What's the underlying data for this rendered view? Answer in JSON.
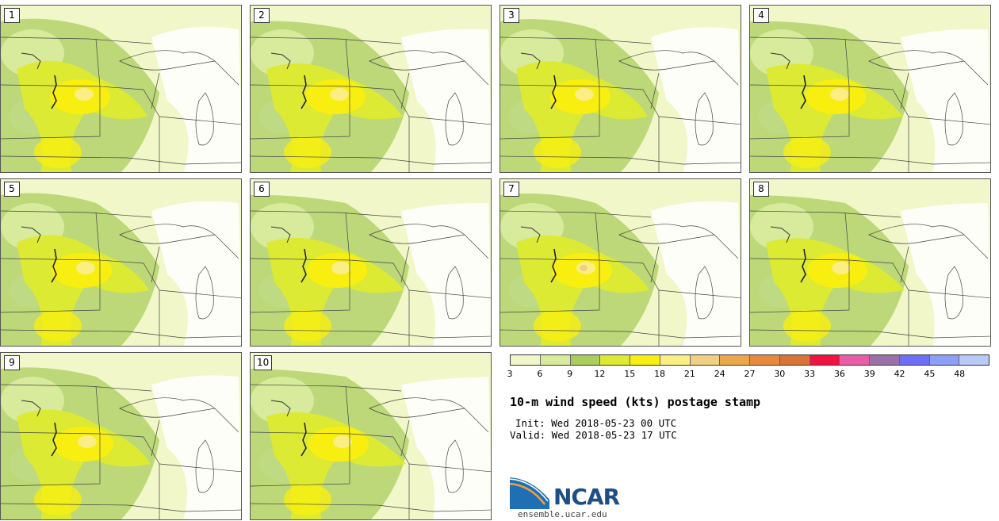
{
  "panels": [
    {
      "label": "1"
    },
    {
      "label": "2"
    },
    {
      "label": "3"
    },
    {
      "label": "4"
    },
    {
      "label": "5"
    },
    {
      "label": "6"
    },
    {
      "label": "7"
    },
    {
      "label": "8"
    },
    {
      "label": "9"
    },
    {
      "label": "10"
    }
  ],
  "colorbar": {
    "colors": [
      "#f1f7c8",
      "#d8ea9c",
      "#aacd5e",
      "#dcea33",
      "#f8ef10",
      "#fbee84",
      "#f2d083",
      "#eca74b",
      "#e88a3e",
      "#d97336",
      "#f01341",
      "#e85da6",
      "#9b72a8",
      "#6e6ef8",
      "#8e9ff8",
      "#b9caf9"
    ],
    "ticks": [
      "3",
      "6",
      "9",
      "12",
      "15",
      "18",
      "21",
      "24",
      "27",
      "30",
      "33",
      "36",
      "39",
      "42",
      "45",
      "48"
    ]
  },
  "title": "10-m wind speed (kts) postage stamp",
  "init": "Init: Wed 2018-05-23 00 UTC",
  "valid": "Valid: Wed 2018-05-23 17 UTC",
  "logo": {
    "text": "NCAR",
    "url_text": "ensemble.ucar.edu",
    "colors": {
      "blue": "#1f6fb5",
      "orange": "#f0a040"
    }
  }
}
